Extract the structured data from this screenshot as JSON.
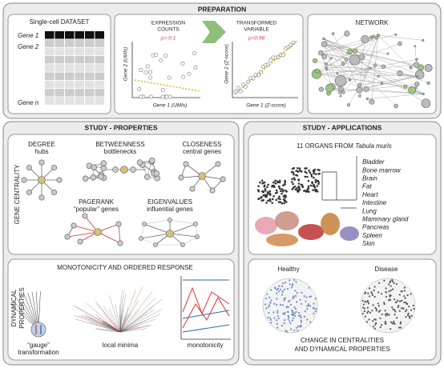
{
  "preparation": {
    "title": "PREPARATION",
    "dataset": {
      "title": "Single-cell DATASET",
      "rows": [
        "Gene 1",
        "Gene 2",
        "Gene n"
      ]
    },
    "counts": {
      "title_lines": [
        "EXPRESSION",
        "COUNTS"
      ],
      "rho": "ρ=-0.1",
      "y_label": "Gene 2 (UMIs)",
      "x_label": "Gene 1 (UMIs)"
    },
    "transformed": {
      "title_lines": [
        "TRANSFORMED",
        "VARIABLE"
      ],
      "rho": "ρ=0.98",
      "y_label": "Gene 2 (Z-score)",
      "x_label": "Gene 1 (Z-score)"
    },
    "network": {
      "title": "NETWORK"
    }
  },
  "properties": {
    "title": "STUDY - PROPERTIES",
    "centrality": {
      "label": "GENE CENTRALITY",
      "measures": [
        {
          "name": "DEGREE",
          "desc": "hubs"
        },
        {
          "name": "BETWEENNESS",
          "desc": "bottlenecks"
        },
        {
          "name": "CLOSENESS",
          "desc": "central genes"
        },
        {
          "name": "PAGERANK",
          "desc": "“popular” genes"
        },
        {
          "name": "EIGENVALUES",
          "desc": "influential genes"
        }
      ]
    },
    "dynamics": {
      "title": "MONOTONICITY AND ORDERED RESPONSE",
      "label_lines": [
        "DYNAMICAL",
        "PROPERTIES"
      ],
      "captions": [
        [
          "“gauge”",
          "transformation"
        ],
        [
          "local minima"
        ],
        [
          "monotonicity"
        ]
      ]
    }
  },
  "applications": {
    "title": "STUDY - APPLICATIONS",
    "organs": {
      "heading": "11 ORGANS FROM",
      "source": "Tabula muris",
      "list": [
        "Bladder",
        "Bone marrow",
        "Brain",
        "Fat",
        "Heart",
        "Intestine",
        "Lung",
        "Mammary gland",
        "Pancreas",
        "Spleen",
        "Skin"
      ]
    },
    "comparison": {
      "states": [
        "Healthy",
        "Disease"
      ],
      "caption_lines": [
        "CHANGE IN CENTRALITIES",
        "AND DYNAMICAL PROPERTIES"
      ]
    }
  }
}
